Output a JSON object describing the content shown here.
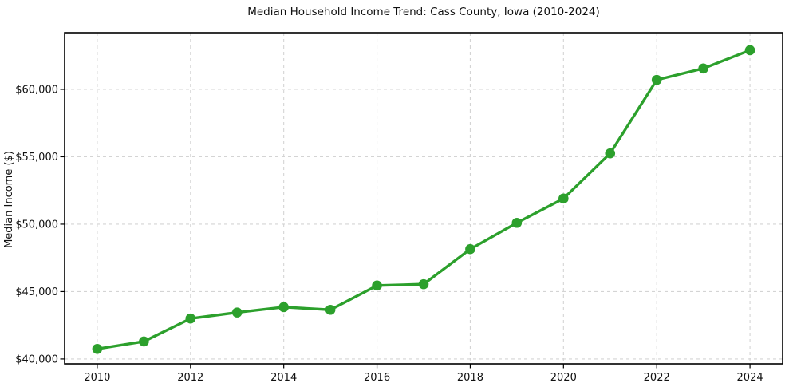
{
  "chart_data": {
    "type": "line",
    "title": "Median Household Income Trend: Cass County, Iowa (2010-2024)",
    "xlabel": "",
    "ylabel": "Median Income ($)",
    "x": [
      2010,
      2011,
      2012,
      2013,
      2014,
      2015,
      2016,
      2017,
      2018,
      2019,
      2020,
      2021,
      2022,
      2023,
      2024
    ],
    "values": [
      40750,
      41300,
      43000,
      43450,
      43850,
      43650,
      45450,
      45550,
      48150,
      50100,
      51900,
      55250,
      60700,
      61550,
      62900
    ],
    "x_ticks": [
      2010,
      2012,
      2014,
      2016,
      2018,
      2020,
      2022,
      2024
    ],
    "x_tick_labels": [
      "2010",
      "2012",
      "2014",
      "2016",
      "2018",
      "2020",
      "2022",
      "2024"
    ],
    "y_ticks": [
      40000,
      45000,
      50000,
      55000,
      60000
    ],
    "y_tick_labels": [
      "$40,000",
      "$45,000",
      "$50,000",
      "$55,000",
      "$60,000"
    ],
    "xlim": [
      2009.3,
      2024.7
    ],
    "ylim": [
      39640,
      64200
    ],
    "grid": true,
    "grid_style": "dashed",
    "legend": "none",
    "marker": "circle"
  },
  "colors": {
    "line": "#2ca02c",
    "marker": "#2ca02c",
    "grid": "#d4d4d4",
    "axis": "#000000",
    "text": "#111111",
    "background": "#ffffff"
  }
}
